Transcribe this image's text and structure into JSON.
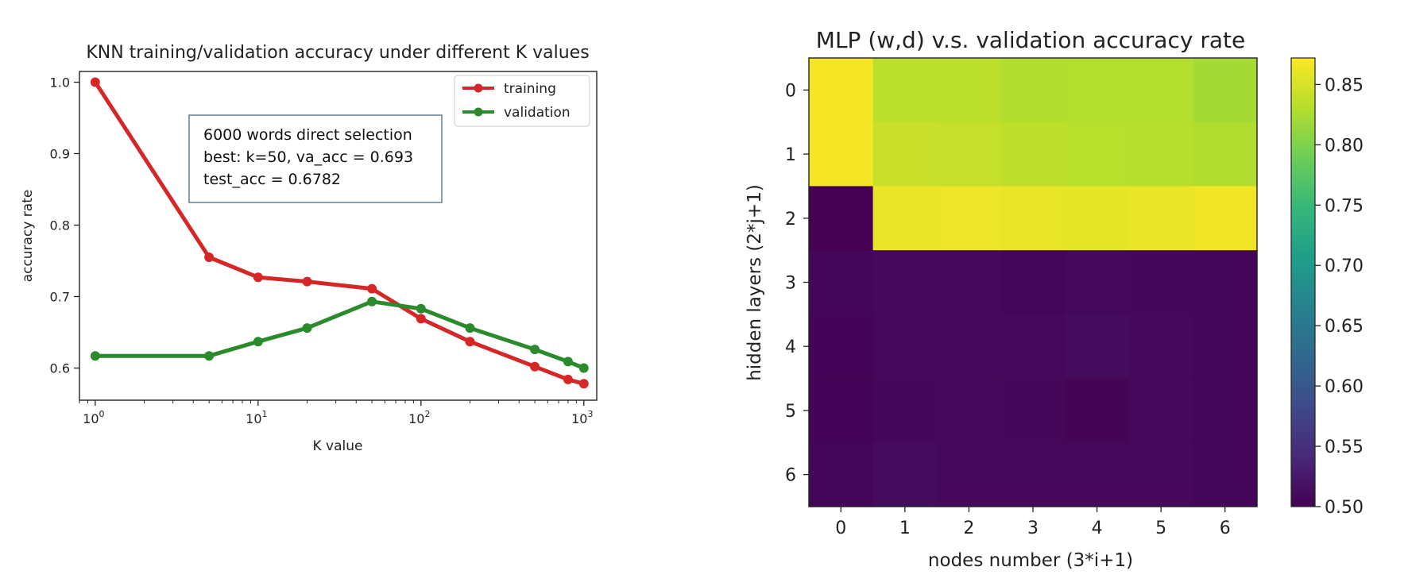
{
  "chart_data": [
    {
      "type": "line",
      "title": "KNN training/validation accuracy under different K values",
      "xlabel": "K value",
      "ylabel": "accuracy rate",
      "xscale": "log",
      "xlim": [
        0.8,
        1200
      ],
      "ylim": [
        0.555,
        1.015
      ],
      "x_ticks": [
        1,
        10,
        100,
        1000
      ],
      "x_tick_labels": [
        {
          "base": "10",
          "exp": "0"
        },
        {
          "base": "10",
          "exp": "1"
        },
        {
          "base": "10",
          "exp": "2"
        },
        {
          "base": "10",
          "exp": "3"
        }
      ],
      "y_ticks": [
        0.6,
        0.7,
        0.8,
        0.9,
        1.0
      ],
      "y_tick_labels": [
        "0.6",
        "0.7",
        "0.8",
        "0.9",
        "1.0"
      ],
      "grid": false,
      "legend_position": "top-right",
      "x": [
        1,
        5,
        10,
        20,
        50,
        100,
        200,
        500,
        800,
        1000
      ],
      "series": [
        {
          "name": "training",
          "color": "#d62728",
          "values": [
            1.0,
            0.755,
            0.727,
            0.721,
            0.711,
            0.669,
            0.637,
            0.602,
            0.584,
            0.578
          ]
        },
        {
          "name": "validation",
          "color": "#2b8a2b",
          "values": [
            0.617,
            0.617,
            0.637,
            0.656,
            0.693,
            0.683,
            0.656,
            0.626,
            0.609,
            0.6
          ]
        }
      ],
      "annotation": [
        "6000 words direct selection",
        "best: k=50, va_acc = 0.693",
        "test_acc = 0.6782"
      ]
    },
    {
      "type": "heatmap",
      "title": "MLP (w,d) v.s. validation accuracy rate",
      "xlabel": "nodes number (3*i+1)",
      "ylabel": "hidden layers (2*j+1)",
      "x_tick_labels": [
        "0",
        "1",
        "2",
        "3",
        "4",
        "5",
        "6"
      ],
      "y_tick_labels": [
        "0",
        "1",
        "2",
        "3",
        "4",
        "5",
        "6"
      ],
      "colormap": "viridis",
      "vmin": 0.5,
      "vmax": 0.872,
      "colorbar_ticks": [
        0.5,
        0.55,
        0.6,
        0.65,
        0.7,
        0.75,
        0.8,
        0.85
      ],
      "colorbar_tick_labels": [
        "0.50",
        "0.55",
        "0.60",
        "0.65",
        "0.70",
        "0.75",
        "0.80",
        "0.85"
      ],
      "values": [
        [
          0.868,
          0.835,
          0.835,
          0.829,
          0.83,
          0.83,
          0.822
        ],
        [
          0.868,
          0.842,
          0.84,
          0.836,
          0.833,
          0.832,
          0.829
        ],
        [
          0.5,
          0.861,
          0.863,
          0.86,
          0.859,
          0.861,
          0.865
        ],
        [
          0.505,
          0.509,
          0.509,
          0.505,
          0.507,
          0.506,
          0.505
        ],
        [
          0.503,
          0.509,
          0.508,
          0.507,
          0.512,
          0.507,
          0.505
        ],
        [
          0.503,
          0.506,
          0.507,
          0.506,
          0.504,
          0.508,
          0.505
        ],
        [
          0.505,
          0.512,
          0.507,
          0.509,
          0.508,
          0.509,
          0.505
        ]
      ]
    }
  ]
}
